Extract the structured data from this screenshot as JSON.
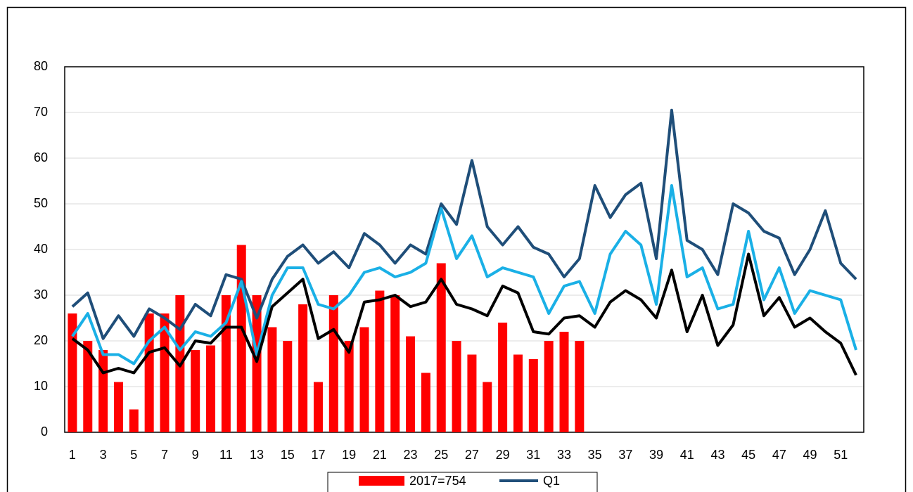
{
  "chart_data": {
    "type": "combo",
    "categories": [
      "1",
      null,
      "3",
      null,
      "5",
      null,
      "7",
      null,
      "9",
      null,
      "11",
      null,
      "13",
      null,
      "15",
      null,
      "17",
      null,
      "19",
      null,
      "21",
      null,
      "23",
      null,
      "25",
      null,
      "27",
      null,
      "29",
      null,
      "31",
      null,
      "33",
      null,
      "35",
      null,
      "37",
      null,
      "39",
      null,
      "41",
      null,
      "43",
      null,
      "45",
      null,
      "47",
      null,
      "49",
      null,
      "51",
      null
    ],
    "series": [
      {
        "name": "2017=754",
        "type": "bar",
        "color": "#ff0000",
        "values": [
          26,
          20,
          18,
          11,
          5,
          26,
          26,
          30,
          18,
          19,
          30,
          41,
          30,
          23,
          20,
          28,
          11,
          30,
          20,
          23,
          31,
          30,
          21,
          13,
          37,
          20,
          17,
          11,
          24,
          17,
          16,
          20,
          22,
          20,
          null,
          null,
          null,
          null,
          null,
          null,
          null,
          null,
          null,
          null,
          null,
          null,
          null,
          null,
          null,
          null,
          null,
          null
        ]
      },
      {
        "name": "Q1",
        "type": "line",
        "color": "#1f4e79",
        "values": [
          27.5,
          30.5,
          20.5,
          25.5,
          21,
          27,
          25,
          22.5,
          28,
          25.5,
          34.5,
          33.5,
          25,
          33.5,
          38.5,
          41,
          37,
          39.5,
          36,
          43.5,
          41,
          37,
          41,
          39,
          50,
          45.5,
          59.5,
          45,
          41,
          45,
          40.5,
          39,
          34,
          38,
          54,
          47,
          52,
          54.5,
          38,
          70.5,
          42,
          40,
          34.5,
          50,
          48,
          44,
          42.5,
          34.5,
          40,
          48.5,
          37,
          33.5
        ]
      },
      {
        "type": "line",
        "color": "#1ab0e6",
        "values": [
          21,
          26,
          17,
          17,
          15,
          20,
          23,
          18,
          22,
          21,
          24,
          33,
          17,
          30,
          36,
          36,
          28,
          27,
          30,
          35,
          36,
          34,
          35,
          37,
          49,
          38,
          43,
          34,
          36,
          35,
          34,
          26,
          32,
          33,
          26,
          39,
          44,
          41,
          28,
          54,
          34,
          36,
          27,
          28,
          44,
          29,
          36,
          26,
          31,
          30,
          29,
          18
        ]
      },
      {
        "type": "line",
        "color": "#000000",
        "values": [
          20.5,
          18,
          13,
          14,
          13,
          17.5,
          18.5,
          14.5,
          20,
          19.5,
          23,
          23,
          15.5,
          27.5,
          30.5,
          33.5,
          20.5,
          22.5,
          17.5,
          28.5,
          29,
          30,
          27.5,
          28.5,
          33.5,
          28,
          27,
          25.5,
          32,
          30.5,
          22,
          21.5,
          25,
          25.5,
          23,
          28.5,
          31,
          29,
          25,
          35.5,
          22,
          30,
          19,
          23.5,
          39,
          25.5,
          29.5,
          23,
          25,
          22,
          19.5,
          12.5
        ]
      }
    ],
    "ylim": [
      0,
      80
    ],
    "yticks": [
      0,
      10,
      20,
      30,
      40,
      50,
      60,
      70,
      80
    ],
    "grid": true,
    "legend": "bottom"
  }
}
